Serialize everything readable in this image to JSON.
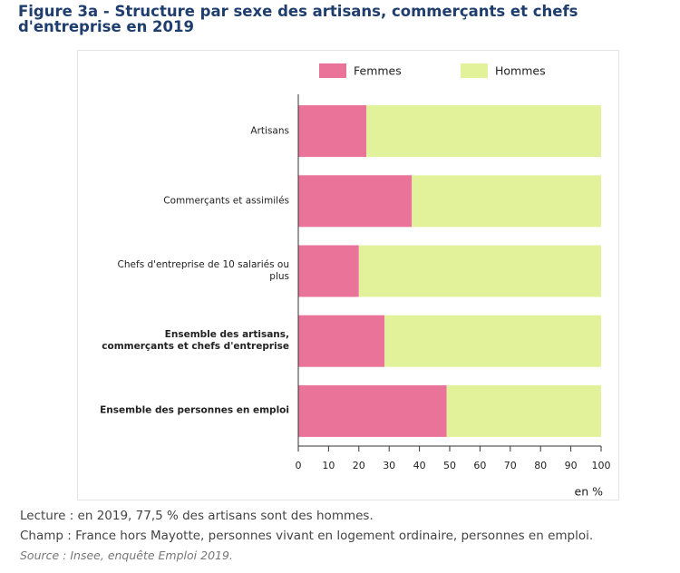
{
  "chart_data": {
    "type": "stacked_barh",
    "title": "Figure 3a - Structure par sexe des artisans, commerçants et chefs d'entreprise en 2019",
    "categories": [
      "Artisans",
      "Commerçants et assimilés",
      "Chefs d'entreprise de 10 salariés ou plus",
      "Ensemble des artisans, commerçants et chefs d'entreprise",
      "Ensemble des personnes en emploi"
    ],
    "category_bold": [
      false,
      false,
      false,
      true,
      true
    ],
    "series": [
      {
        "name": "Femmes",
        "color": "#ea7399",
        "values": [
          22.5,
          37.5,
          20,
          28.5,
          49
        ]
      },
      {
        "name": "Hommes",
        "color": "#e1f29b",
        "values": [
          77.5,
          62.5,
          80,
          71.5,
          51
        ]
      }
    ],
    "xlim": [
      0,
      100
    ],
    "xticks": [
      0,
      10,
      20,
      30,
      40,
      50,
      60,
      70,
      80,
      90,
      100
    ],
    "x_label": "en %",
    "legend": "top"
  },
  "notes": [
    "Lecture : en 2019, 77,5 % des artisans sont des hommes.",
    "Champ : France hors Mayotte, personnes vivant en logement ordinaire, personnes en emploi."
  ],
  "source": "Source : Insee, enquête Emploi 2019."
}
